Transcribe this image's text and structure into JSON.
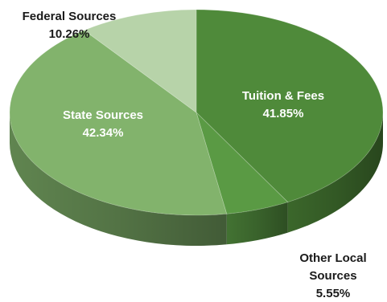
{
  "chart_data": {
    "type": "pie",
    "style": "3d-tilted",
    "slices": [
      {
        "label": "Tuition & Fees",
        "value_label": "41.85%",
        "value": 41.85,
        "color": "#4f8a3a"
      },
      {
        "label": "Other Local Sources",
        "label_lines": [
          "Other Local",
          "Sources"
        ],
        "value_label": "5.55%",
        "value": 5.55,
        "color": "#5a9a44"
      },
      {
        "label": "State Sources",
        "value_label": "42.34%",
        "value": 42.34,
        "color": "#82b36c"
      },
      {
        "label": "Federal Sources",
        "value_label": "10.26%",
        "value": 10.26,
        "color": "#b7d3a9"
      }
    ],
    "legend": "none"
  }
}
